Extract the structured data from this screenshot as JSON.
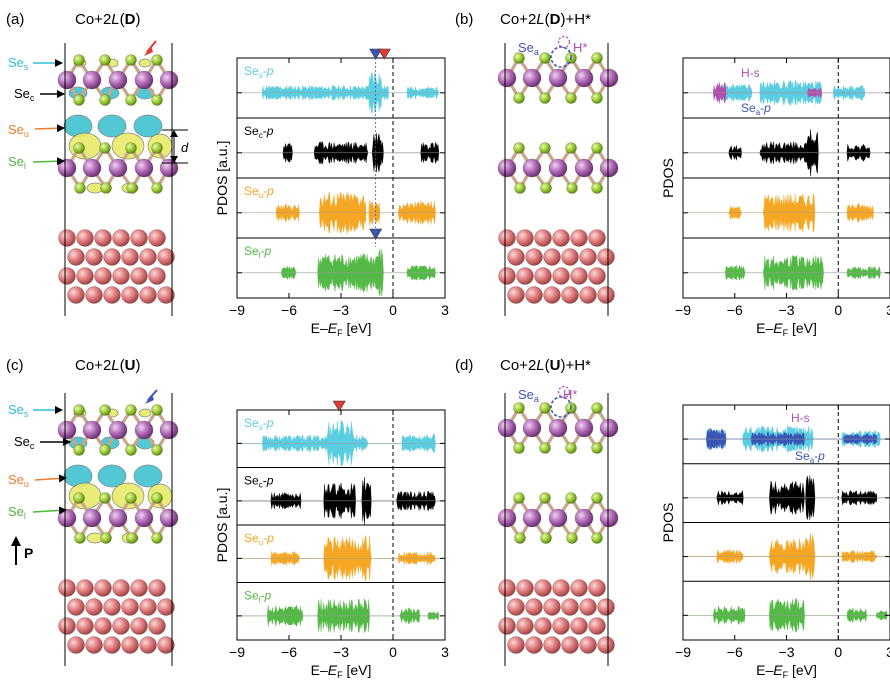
{
  "figure": {
    "panels": [
      {
        "id": "a",
        "tag": "(a)",
        "title": "Co+2L(D)",
        "title_runs": [
          {
            "t": "Co+",
            "s": ""
          },
          {
            "t": "2",
            "s": ""
          },
          {
            "t": "L",
            "s": "i"
          },
          {
            "t": "(",
            "s": ""
          },
          {
            "t": "D",
            "s": "b"
          },
          {
            "t": ")",
            "s": ""
          }
        ],
        "structure_labels": [
          {
            "base": "Se",
            "sub": "s",
            "color": "#2fc0da"
          },
          {
            "base": "Se",
            "sub": "c",
            "color": "#000000"
          },
          {
            "base": "Se",
            "sub": "u",
            "color": "#f07c2c"
          },
          {
            "base": "Se",
            "sub": "l",
            "color": "#4fb83c"
          }
        ],
        "distance_label": "d",
        "pdos": {
          "ylabel": "PDOS [a.u.]",
          "xlabel": "E–E_F [eV]",
          "xrange": [
            -9,
            3
          ],
          "xticks": [
            "-9",
            "-6",
            "-3",
            "0",
            "3"
          ],
          "tracks": [
            {
              "label": "Se_s-p",
              "color": "#5bcde0"
            },
            {
              "label": "Se_c-p",
              "color": "#000000"
            },
            {
              "label": "Se_u-p",
              "color": "#f5a623"
            },
            {
              "label": "Se_l-p",
              "color": "#55b947"
            }
          ],
          "markers": [
            {
              "energy": -1.0,
              "color": "#3a55b4",
              "track": 0
            },
            {
              "energy": -0.5,
              "color": "#e53935",
              "track": 0
            },
            {
              "energy": -1.0,
              "color": "#3a55b4",
              "track": 3
            }
          ]
        }
      },
      {
        "id": "b",
        "tag": "(b)",
        "title": "Co+2L(D)+H*",
        "title_runs": [
          {
            "t": "Co+",
            "s": ""
          },
          {
            "t": "2",
            "s": ""
          },
          {
            "t": "L",
            "s": "i"
          },
          {
            "t": "(",
            "s": ""
          },
          {
            "t": "D",
            "s": "b"
          },
          {
            "t": ")+H*",
            "s": ""
          }
        ],
        "adsorbate_labels": [
          {
            "base": "Se",
            "sub": "a",
            "color": "#3a55b4"
          },
          {
            "base": "H*",
            "sub": "",
            "color": "#b04fb0"
          }
        ],
        "pdos": {
          "ylabel": "PDOS",
          "xlabel": "E–E_F [eV]",
          "xticks": [
            "-9",
            "-6",
            "-3",
            "0",
            "3"
          ],
          "overlay_labels": [
            {
              "text": "H-s",
              "color": "#b04fb0"
            },
            {
              "base": "Se",
              "sub": "a",
              "suffix": "-p",
              "color": "#3a55b4"
            }
          ]
        }
      },
      {
        "id": "c",
        "tag": "(c)",
        "title": "Co+2L(U)",
        "title_runs": [
          {
            "t": "Co+",
            "s": ""
          },
          {
            "t": "2",
            "s": ""
          },
          {
            "t": "L",
            "s": "i"
          },
          {
            "t": "(",
            "s": ""
          },
          {
            "t": "U",
            "s": "b"
          },
          {
            "t": ")",
            "s": ""
          }
        ],
        "polarization_label": "P",
        "pdos": {
          "ylabel": "PDOS [a.u.]",
          "xlabel": "E–E_F [eV]",
          "xticks": [
            "-9",
            "-6",
            "-3",
            "0",
            "3"
          ],
          "markers": [
            {
              "energy": -3.1,
              "color": "#e53935",
              "track": 0
            }
          ]
        }
      },
      {
        "id": "d",
        "tag": "(d)",
        "title": "Co+2L(U)+H*",
        "title_runs": [
          {
            "t": "Co+",
            "s": ""
          },
          {
            "t": "2",
            "s": ""
          },
          {
            "t": "L",
            "s": "i"
          },
          {
            "t": "(",
            "s": ""
          },
          {
            "t": "U",
            "s": "b"
          },
          {
            "t": ")+H*",
            "s": ""
          }
        ],
        "pdos": {
          "ylabel": "PDOS",
          "xlabel": "E–E_F [eV]",
          "xticks": [
            "-9",
            "-6",
            "-3",
            "0",
            "3"
          ]
        }
      }
    ]
  },
  "colors": {
    "se": "#a8cf3c",
    "se_dark": "#6f9e1a",
    "metal": "#b26bb8",
    "co": "#e07b7e",
    "bond": "#c9a58a",
    "iso_yellow": "#e8ea6a",
    "iso_cyan": "#3fc3cf"
  }
}
